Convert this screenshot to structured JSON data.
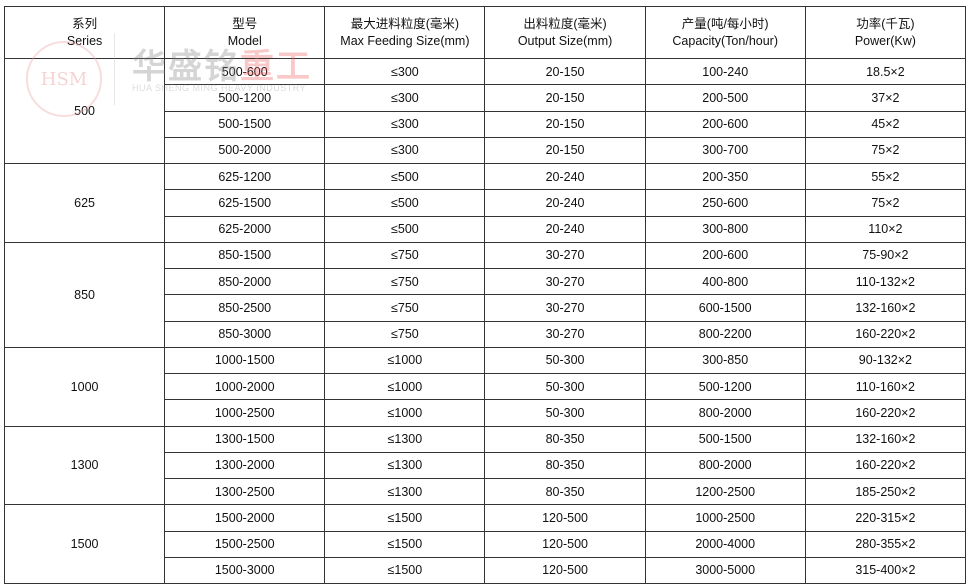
{
  "header": {
    "series": [
      "系列",
      "Series"
    ],
    "model": [
      "型号",
      "Model"
    ],
    "feed": [
      "最大进料粒度(毫米)",
      "Max Feeding Size(mm)"
    ],
    "output": [
      "出料粒度(毫米)",
      "Output Size(mm)"
    ],
    "capacity": [
      "产量(吨/每小时)",
      "Capacity(Ton/hour)"
    ],
    "power": [
      "功率(千瓦)",
      "Power(Kw)"
    ]
  },
  "watermark": {
    "logo": "HSM",
    "cn_gray": "华盛铭",
    "cn_red": "重工",
    "en": "HUA SHENG MING HEAVY INDUSTRY"
  },
  "groups": [
    {
      "series": "500",
      "rows": [
        [
          "500-600",
          "≤300",
          "20-150",
          "100-240",
          "18.5×2"
        ],
        [
          "500-1200",
          "≤300",
          "20-150",
          "200-500",
          "37×2"
        ],
        [
          "500-1500",
          "≤300",
          "20-150",
          "200-600",
          "45×2"
        ],
        [
          "500-2000",
          "≤300",
          "20-150",
          "300-700",
          "75×2"
        ]
      ]
    },
    {
      "series": "625",
      "rows": [
        [
          "625-1200",
          "≤500",
          "20-240",
          "200-350",
          "55×2"
        ],
        [
          "625-1500",
          "≤500",
          "20-240",
          "250-600",
          "75×2"
        ],
        [
          "625-2000",
          "≤500",
          "20-240",
          "300-800",
          "110×2"
        ]
      ]
    },
    {
      "series": "850",
      "rows": [
        [
          "850-1500",
          "≤750",
          "30-270",
          "200-600",
          "75-90×2"
        ],
        [
          "850-2000",
          "≤750",
          "30-270",
          "400-800",
          "110-132×2"
        ],
        [
          "850-2500",
          "≤750",
          "30-270",
          "600-1500",
          "132-160×2"
        ],
        [
          "850-3000",
          "≤750",
          "30-270",
          "800-2200",
          "160-220×2"
        ]
      ]
    },
    {
      "series": "1000",
      "rows": [
        [
          "1000-1500",
          "≤1000",
          "50-300",
          "300-850",
          "90-132×2"
        ],
        [
          "1000-2000",
          "≤1000",
          "50-300",
          "500-1200",
          "110-160×2"
        ],
        [
          "1000-2500",
          "≤1000",
          "50-300",
          "800-2000",
          "160-220×2"
        ]
      ]
    },
    {
      "series": "1300",
      "rows": [
        [
          "1300-1500",
          "≤1300",
          "80-350",
          "500-1500",
          "132-160×2"
        ],
        [
          "1300-2000",
          "≤1300",
          "80-350",
          "800-2000",
          "160-220×2"
        ],
        [
          "1300-2500",
          "≤1300",
          "80-350",
          "1200-2500",
          "185-250×2"
        ]
      ]
    },
    {
      "series": "1500",
      "rows": [
        [
          "1500-2000",
          "≤1500",
          "120-500",
          "1000-2500",
          "220-315×2"
        ],
        [
          "1500-2500",
          "≤1500",
          "120-500",
          "2000-4000",
          "280-355×2"
        ],
        [
          "1500-3000",
          "≤1500",
          "120-500",
          "3000-5000",
          "315-400×2"
        ]
      ]
    }
  ]
}
